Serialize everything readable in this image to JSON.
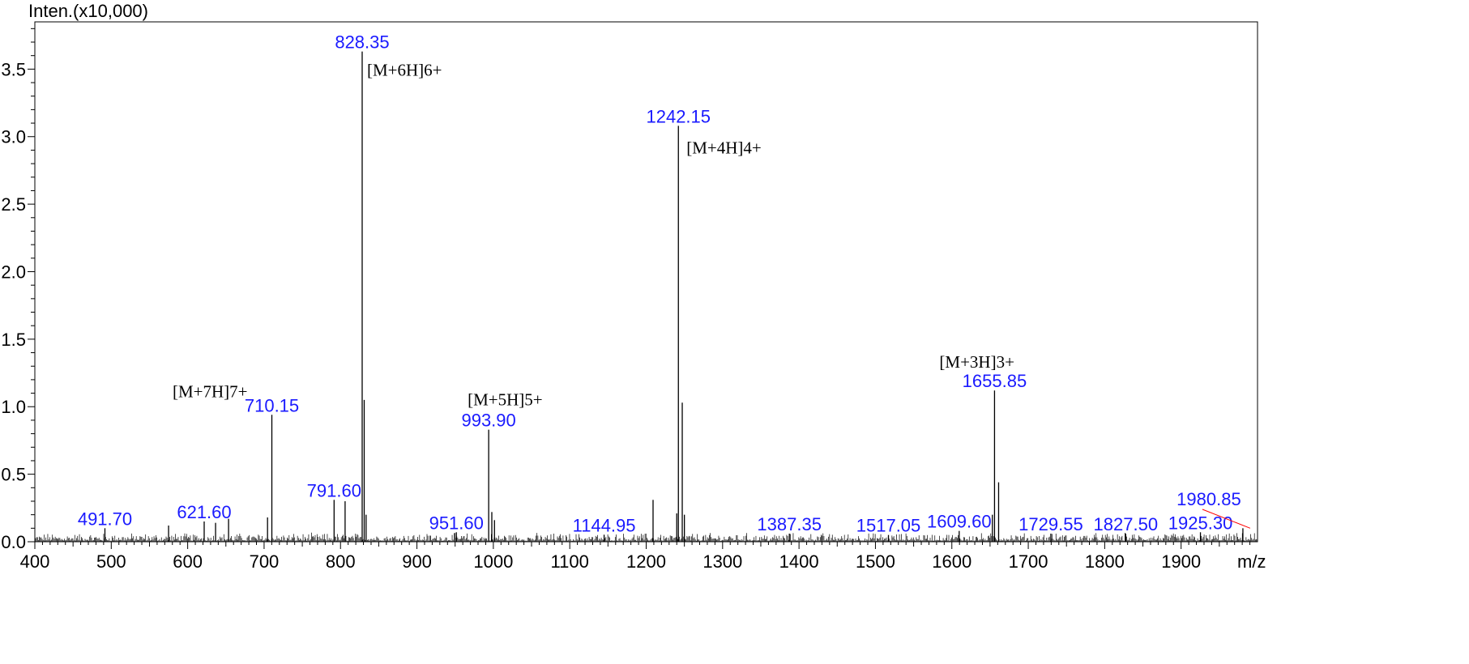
{
  "chart_data": {
    "type": "line",
    "subtype": "mass-spectrum",
    "title": "",
    "ylabel": "Inten.(x10,000)",
    "xlabel": "m/z",
    "xlim": [
      400,
      2000
    ],
    "ylim": [
      0,
      3.85
    ],
    "x_ticks": [
      400,
      500,
      600,
      700,
      800,
      900,
      1000,
      1100,
      1200,
      1300,
      1400,
      1500,
      1600,
      1700,
      1800,
      1900
    ],
    "y_ticks": [
      0.0,
      0.5,
      1.0,
      1.5,
      2.0,
      2.5,
      3.0,
      3.5
    ],
    "y_tick_labels": [
      "0.0",
      "0.5",
      "1.0",
      "1.5",
      "2.0",
      "2.5",
      "3.0",
      "3.5"
    ],
    "grid": false,
    "peaks": [
      {
        "mz": 491.7,
        "intensity": 0.1,
        "label": "491.70"
      },
      {
        "mz": 621.6,
        "intensity": 0.15,
        "label": "621.60"
      },
      {
        "mz": 710.15,
        "intensity": 0.94,
        "label": "710.15",
        "ion": "[M+7H]7+"
      },
      {
        "mz": 791.6,
        "intensity": 0.31,
        "label": "791.60"
      },
      {
        "mz": 828.35,
        "intensity": 3.63,
        "label": "828.35",
        "ion": "[M+6H]6+"
      },
      {
        "mz": 951.6,
        "intensity": 0.07,
        "label": "951.60"
      },
      {
        "mz": 993.9,
        "intensity": 0.83,
        "label": "993.90",
        "ion": "[M+5H]5+"
      },
      {
        "mz": 1144.95,
        "intensity": 0.05,
        "label": "1144.95"
      },
      {
        "mz": 1242.15,
        "intensity": 3.08,
        "label": "1242.15",
        "ion": "[M+4H]4+"
      },
      {
        "mz": 1387.35,
        "intensity": 0.06,
        "label": "1387.35"
      },
      {
        "mz": 1517.05,
        "intensity": 0.05,
        "label": "1517.05"
      },
      {
        "mz": 1609.6,
        "intensity": 0.08,
        "label": "1609.60"
      },
      {
        "mz": 1655.85,
        "intensity": 1.12,
        "label": "1655.85",
        "ion": "[M+3H]3+"
      },
      {
        "mz": 1729.55,
        "intensity": 0.06,
        "label": "1729.55"
      },
      {
        "mz": 1827.5,
        "intensity": 0.06,
        "label": "1827.50"
      },
      {
        "mz": 1925.3,
        "intensity": 0.07,
        "label": "1925.30"
      },
      {
        "mz": 1980.85,
        "intensity": 0.1,
        "label": "1980.85"
      }
    ],
    "minor_peaks": [
      {
        "mz": 831.0,
        "intensity": 1.05
      },
      {
        "mz": 833.5,
        "intensity": 0.2
      },
      {
        "mz": 1247.2,
        "intensity": 1.03
      },
      {
        "mz": 1250.0,
        "intensity": 0.2
      },
      {
        "mz": 1661.2,
        "intensity": 0.44
      },
      {
        "mz": 1209.0,
        "intensity": 0.31
      },
      {
        "mz": 998.0,
        "intensity": 0.22
      },
      {
        "mz": 1001.5,
        "intensity": 0.16
      },
      {
        "mz": 806.0,
        "intensity": 0.3
      },
      {
        "mz": 704.5,
        "intensity": 0.18
      },
      {
        "mz": 653.5,
        "intensity": 0.17
      },
      {
        "mz": 636.5,
        "intensity": 0.14
      },
      {
        "mz": 575.0,
        "intensity": 0.12
      },
      {
        "mz": 1653.0,
        "intensity": 0.2
      },
      {
        "mz": 1240.0,
        "intensity": 0.21
      }
    ],
    "baseline_noise_max": 0.07,
    "colors": {
      "peak_label": "#1a1aff",
      "ion_label": "#000000",
      "spectrum": "#000000",
      "leader_line": "#ff0000"
    }
  }
}
